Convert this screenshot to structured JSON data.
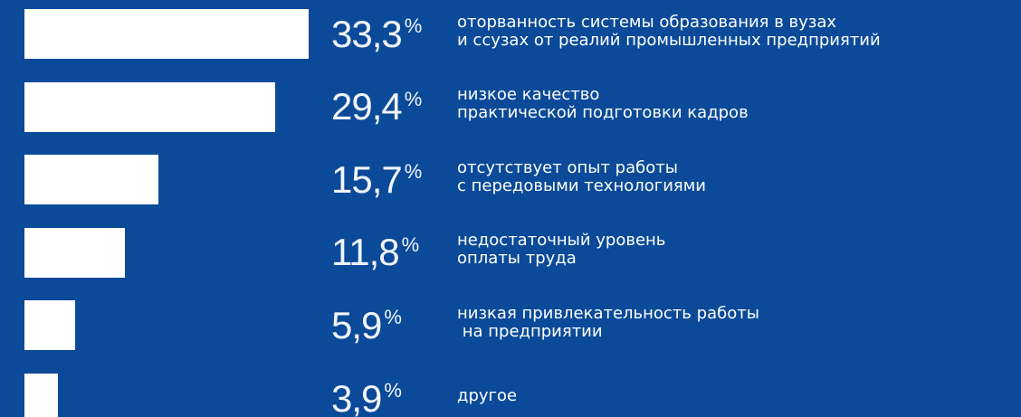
{
  "chart_data": {
    "type": "bar",
    "orientation": "horizontal",
    "categories": [
      "оторванность системы образования в вузах\nи ссузах от реалий промышленных предприятий",
      "низкое качество\nпрактической подготовки кадров",
      "отсутствует опыт работы\nс передовыми технологиями",
      "недостаточный уровень\nоплаты труда",
      "низкая привлекательность работы\n на предприятии",
      "другое"
    ],
    "values": [
      33.3,
      29.4,
      15.7,
      11.8,
      5.9,
      3.9
    ],
    "value_labels": [
      "33,3",
      "29,4",
      "15,7",
      "11,8",
      "5,9",
      "3,9"
    ],
    "unit": "%",
    "color": "#ffffff",
    "background": "#0b4a99"
  }
}
